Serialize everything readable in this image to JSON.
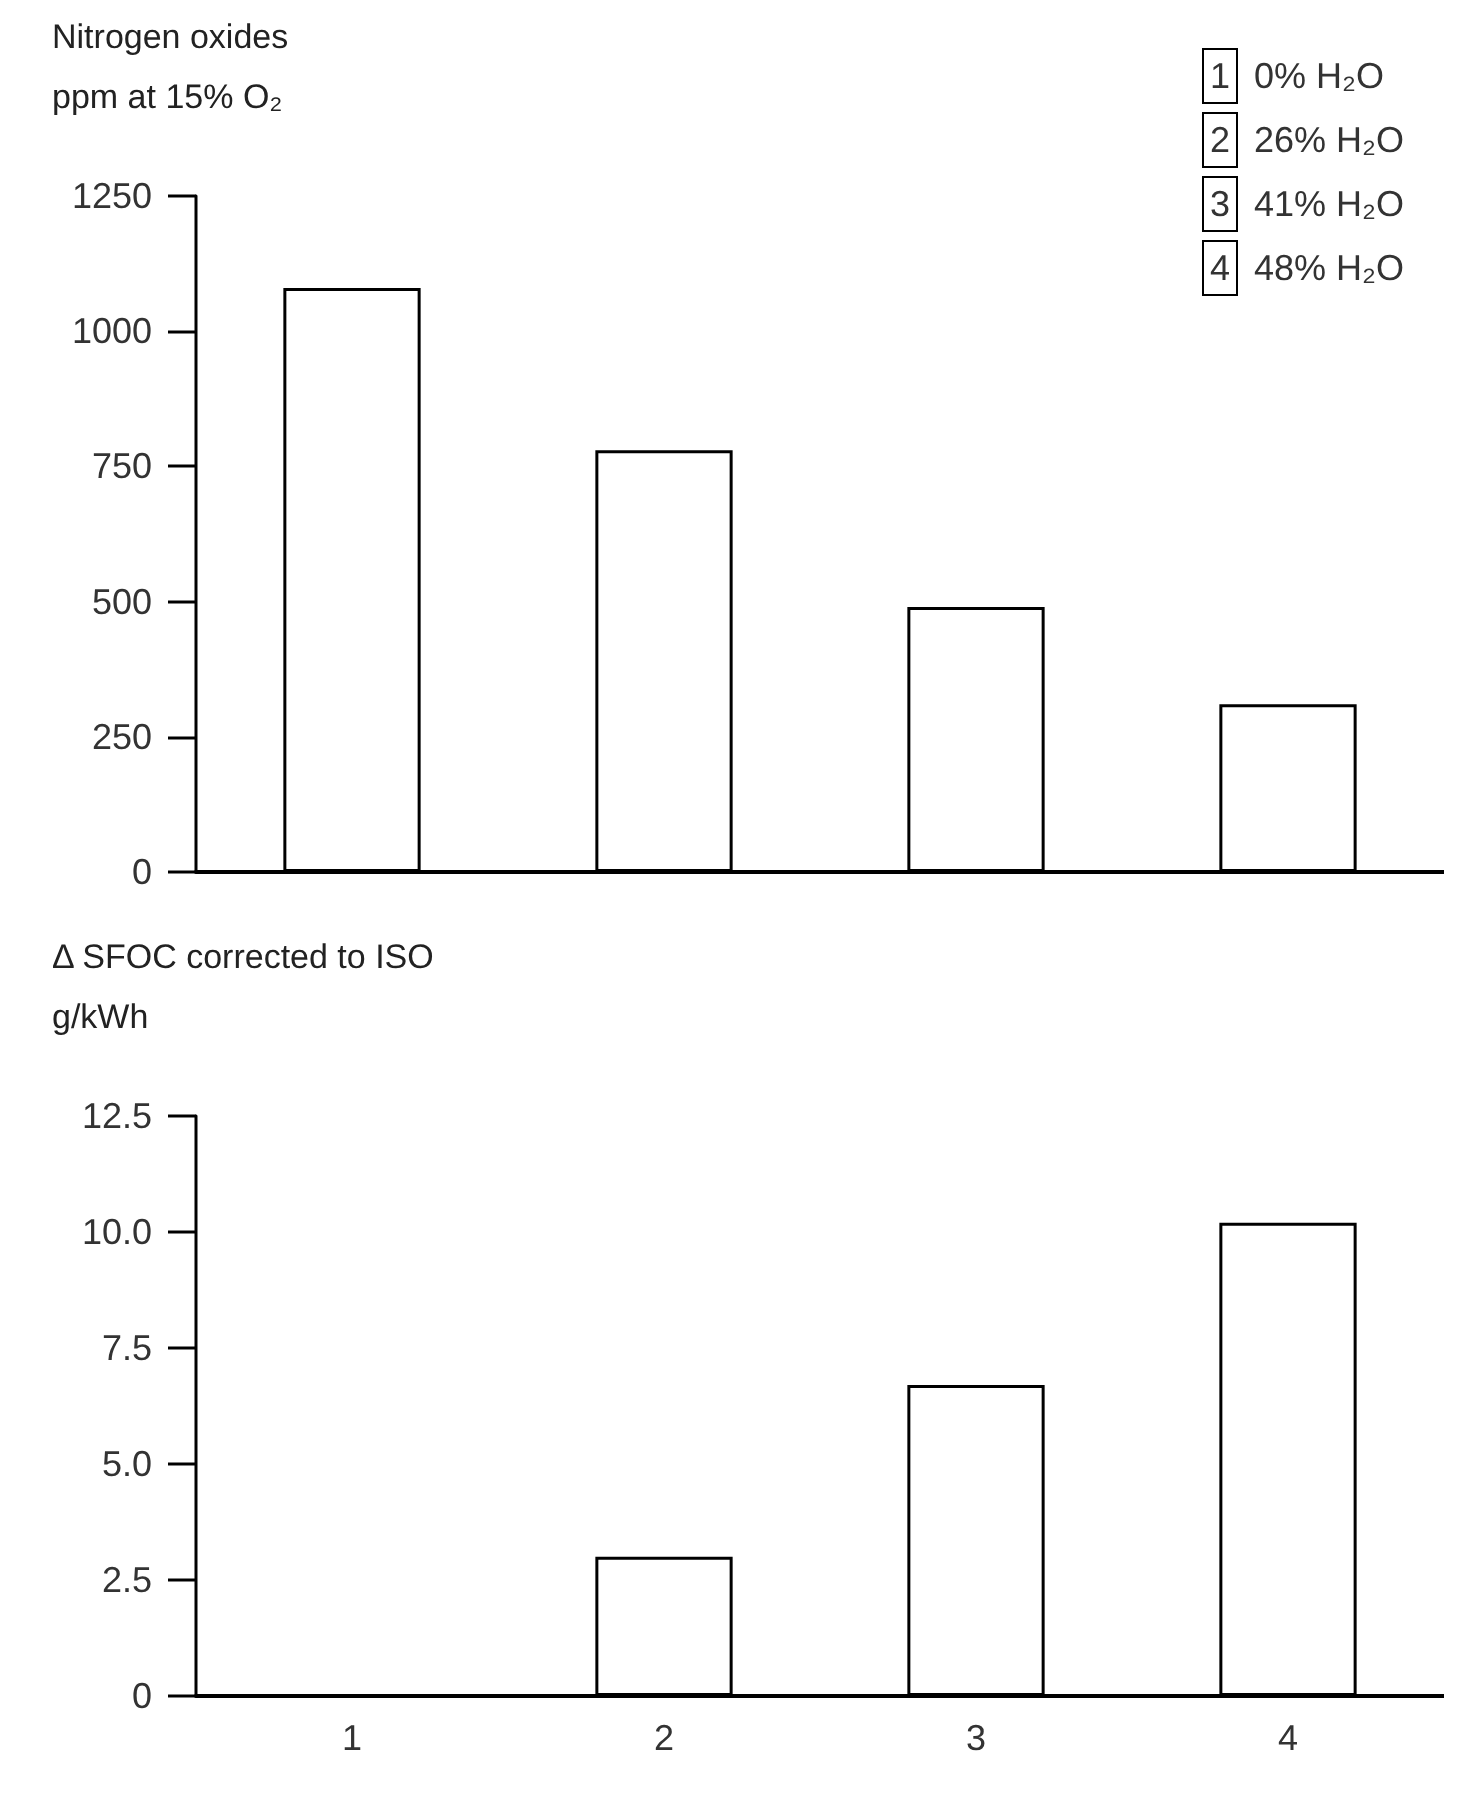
{
  "chart_data": [
    {
      "type": "bar",
      "title": "Nitrogen oxides",
      "ylabel": "ppm at 15% O₂",
      "categories": [
        "1",
        "2",
        "3",
        "4"
      ],
      "values": [
        1080,
        780,
        490,
        310
      ],
      "color": "#ffffff",
      "ylim": [
        0,
        1250
      ],
      "yticks": [
        0,
        250,
        500,
        750,
        1000,
        1250
      ],
      "grid": false,
      "tick_labels": "y",
      "annotations": [
        "0% H₂O",
        "26% H₂O",
        "41% H₂O",
        "48% H₂O"
      ]
    },
    {
      "type": "bar",
      "title": "Δ SFOC corrected to ISO",
      "ylabel": "g/kWh",
      "categories": [
        "1",
        "2",
        "3",
        "4"
      ],
      "values": [
        null,
        3.0,
        6.7,
        10.2
      ],
      "color": "#ffffff",
      "ylim": [
        0,
        12.5
      ],
      "yticks": [
        0,
        2.5,
        {
          "value": 5,
          "label": "5.0"
        },
        7.5,
        {
          "value": 10,
          "label": "10.0"
        },
        12.5
      ],
      "grid": false
    }
  ]
}
